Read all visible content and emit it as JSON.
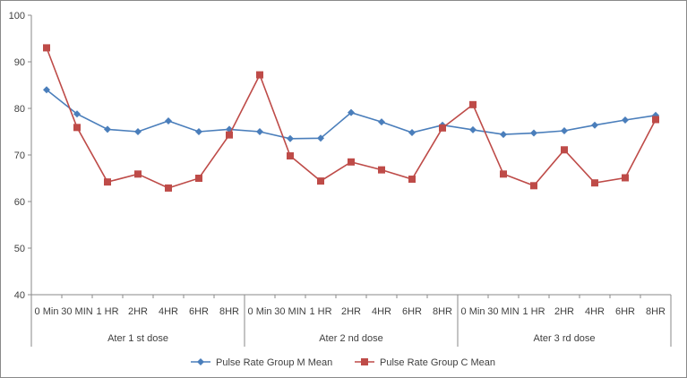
{
  "chart_data": {
    "type": "line",
    "title": "",
    "xlabel": "",
    "ylabel": "",
    "ylim": [
      40,
      100
    ],
    "yticks": [
      "40",
      "50",
      "60",
      "70",
      "80",
      "90",
      "100"
    ],
    "grid": false,
    "legend_position": "bottom",
    "groups": [
      "Ater 1 st dose",
      "Ater 2 nd dose",
      "Ater 3 rd dose"
    ],
    "categories": [
      "0 Min",
      "30 MIN",
      "1 HR",
      "2HR",
      "4HR",
      "6HR",
      "8HR",
      "0 Min",
      "30 MIN",
      "1 HR",
      "2HR",
      "4HR",
      "6HR",
      "8HR",
      "0 Min",
      "30 MIN",
      "1 HR",
      "2HR",
      "4HR",
      "6HR",
      "8HR"
    ],
    "series": [
      {
        "name": "Pulse Rate Group M Mean",
        "color": "#4a7ebb",
        "marker": "diamond",
        "values": [
          84.0,
          78.8,
          75.5,
          75.0,
          77.3,
          75.0,
          75.5,
          75.0,
          73.5,
          73.6,
          79.1,
          77.1,
          74.8,
          76.4,
          75.4,
          74.4,
          74.7,
          75.2,
          76.4,
          77.5,
          78.5
        ]
      },
      {
        "name": "Pulse Rate Group C Mean",
        "color": "#be4b48",
        "marker": "square",
        "values": [
          93.0,
          75.9,
          64.2,
          65.9,
          62.9,
          65.0,
          74.3,
          87.2,
          69.8,
          64.4,
          68.5,
          66.8,
          64.8,
          75.8,
          80.8,
          65.9,
          63.4,
          71.1,
          64.0,
          65.1,
          77.6
        ]
      }
    ]
  }
}
